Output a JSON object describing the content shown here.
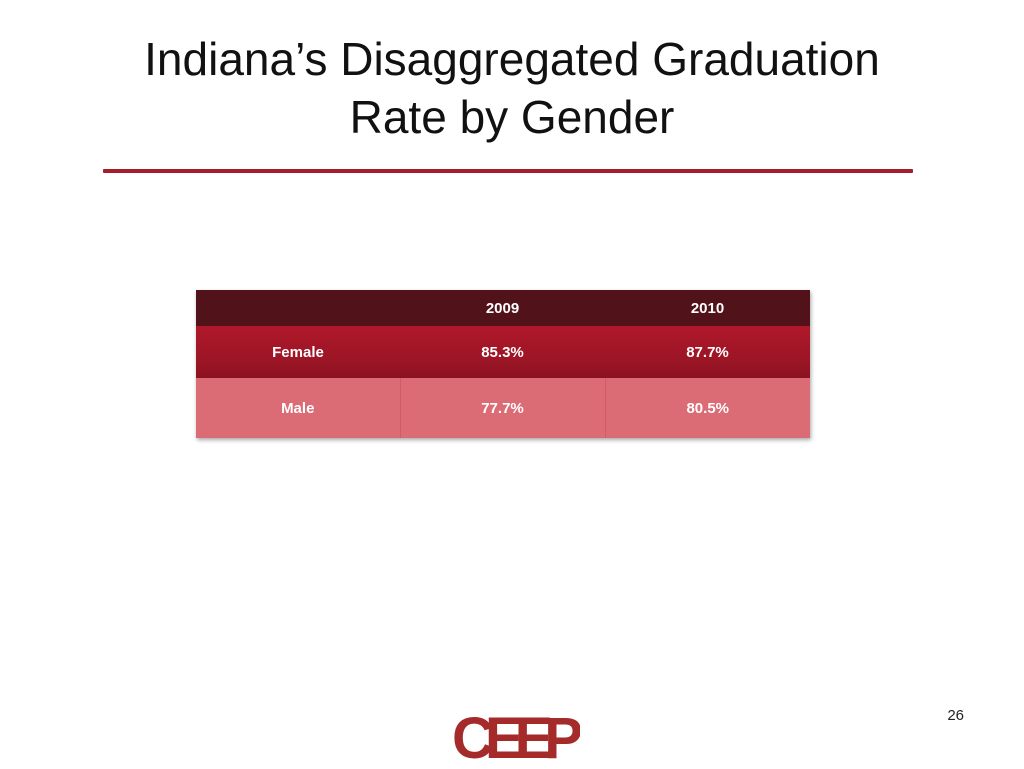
{
  "slide": {
    "title_line1": "Indiana’s Disaggregated Graduation",
    "title_line2": "Rate by Gender",
    "page_number": "26"
  },
  "table": {
    "headers": [
      "",
      "2009",
      "2010"
    ],
    "rows": [
      {
        "label": "Female",
        "values": [
          "85.3%",
          "87.7%"
        ]
      },
      {
        "label": "Male",
        "values": [
          "77.7%",
          "80.5%"
        ]
      }
    ]
  },
  "logo": {
    "text": "CEEP",
    "color": "#a52a2a"
  },
  "colors": {
    "accent": "#a51c2c",
    "header_bg": "#521219",
    "female_bg": "#a0162a",
    "male_bg": "#db6b75"
  }
}
